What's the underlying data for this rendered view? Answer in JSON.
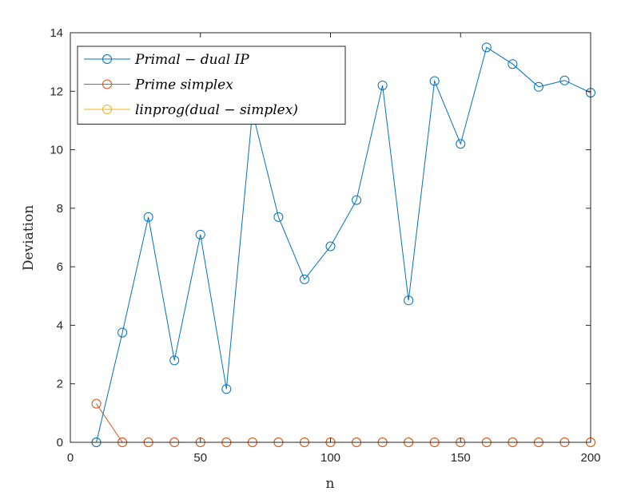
{
  "chart_data": {
    "type": "line",
    "xlabel": "n",
    "ylabel": "Deviation",
    "xlim": [
      0,
      200
    ],
    "ylim": [
      0,
      14
    ],
    "xticks": [
      0,
      50,
      100,
      150,
      200
    ],
    "yticks": [
      0,
      2,
      4,
      6,
      8,
      10,
      12,
      14
    ],
    "grid": false,
    "legend_position": "top-left",
    "x": [
      10,
      20,
      30,
      40,
      50,
      60,
      70,
      80,
      90,
      100,
      110,
      120,
      130,
      140,
      150,
      160,
      170,
      180,
      190,
      200
    ],
    "series": [
      {
        "name": "Primal − dual IP",
        "color": "#0072BD",
        "values": [
          0,
          3.75,
          7.7,
          2.8,
          7.1,
          1.82,
          11.3,
          7.7,
          5.57,
          6.7,
          8.28,
          12.2,
          4.85,
          12.35,
          10.2,
          13.5,
          12.93,
          12.15,
          12.37,
          11.95
        ]
      },
      {
        "name": "Prime simplex",
        "color": "#D95319",
        "values": [
          1.32,
          0,
          0,
          0,
          0,
          0,
          0,
          0,
          0,
          0,
          0,
          0,
          0,
          0,
          0,
          0,
          0,
          0,
          0,
          0
        ]
      },
      {
        "name": "linprog(dual − simplex)",
        "color": "#EDB120",
        "values": [
          0,
          0,
          0,
          0,
          0,
          0,
          0,
          0,
          0,
          0,
          0,
          0,
          0,
          0,
          0,
          0,
          0,
          0,
          0,
          0
        ]
      }
    ]
  }
}
